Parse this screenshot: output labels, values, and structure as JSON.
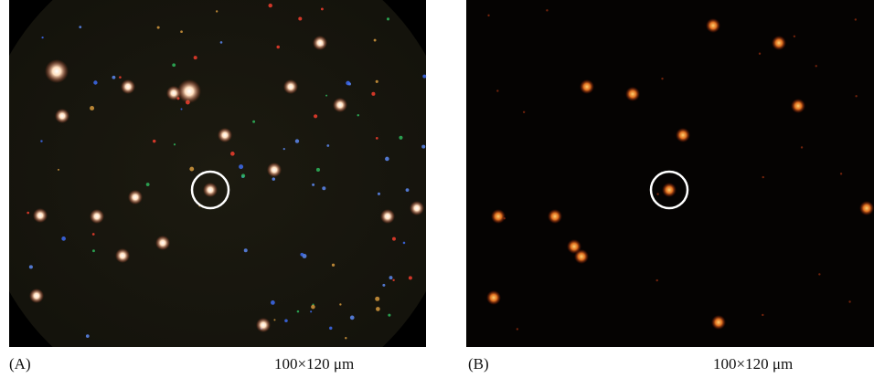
{
  "panels": [
    {
      "label": "(A)",
      "scale": "100×120 μm"
    },
    {
      "label": "(B)",
      "scale": "100×120 μm"
    }
  ]
}
